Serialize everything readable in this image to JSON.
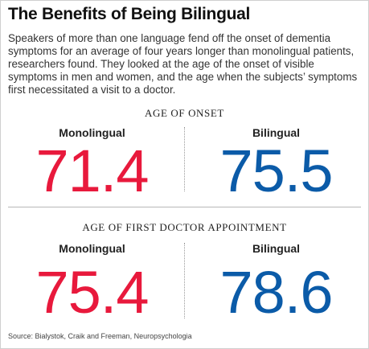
{
  "title": "The Benefits of Being Bilingual",
  "intro": "Speakers of more than one language fend off the onset of dementia symptoms for an average of four years longer than monolingual patients, researchers found. They looked at the age of the onset of visible symptoms in men and women, and the age when the subjects’ symptoms first necessitated a visit to a doctor.",
  "colors": {
    "monolingual": "#e8193c",
    "bilingual": "#0b5ba8"
  },
  "sections": [
    {
      "heading": "AGE OF ONSET",
      "monolingual_label": "Monolingual",
      "monolingual_value": "71.4",
      "bilingual_label": "Bilingual",
      "bilingual_value": "75.5"
    },
    {
      "heading": "AGE OF FIRST DOCTOR APPOINTMENT",
      "monolingual_label": "Monolingual",
      "monolingual_value": "75.4",
      "bilingual_label": "Bilingual",
      "bilingual_value": "78.6"
    }
  ],
  "source": "Source: Bialystok, Craik and Freeman, Neuropsychologia"
}
